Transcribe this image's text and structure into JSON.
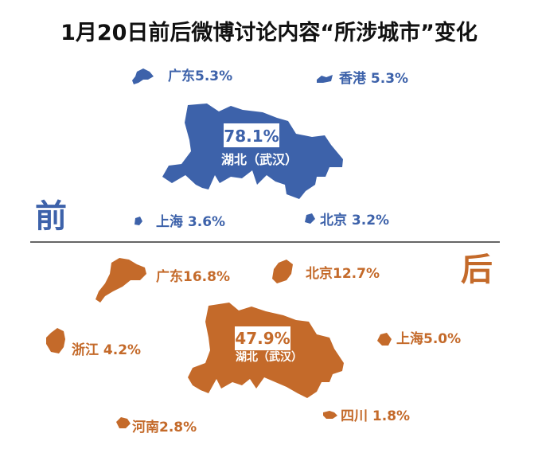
{
  "title": "1月20日前后微博讨论内容“所涉城市”变化",
  "colors": {
    "before": "#3D62AA",
    "after": "#C46A2A",
    "text_before": "#3D62AA",
    "text_after": "#C46A2A"
  },
  "chart_data": {
    "type": "table",
    "title": "1月20日前后微博讨论内容“所涉城市”变化",
    "series": [
      {
        "name": "前",
        "items": [
          {
            "city": "湖北（武汉）",
            "value": 78.1,
            "text": "78.1%"
          },
          {
            "city": "广东",
            "value": 5.3,
            "text": "广东5.3%"
          },
          {
            "city": "香港",
            "value": 5.3,
            "text": "香港 5.3%"
          },
          {
            "city": "上海",
            "value": 3.6,
            "text": "上海 3.6%"
          },
          {
            "city": "北京",
            "value": 3.2,
            "text": "北京 3.2%"
          }
        ]
      },
      {
        "name": "后",
        "items": [
          {
            "city": "湖北（武汉）",
            "value": 47.9,
            "text": "47.9%"
          },
          {
            "city": "广东",
            "value": 16.8,
            "text": "广东16.8%"
          },
          {
            "city": "北京",
            "value": 12.7,
            "text": "北京12.7%"
          },
          {
            "city": "浙江",
            "value": 4.2,
            "text": "浙江 4.2%"
          },
          {
            "city": "上海",
            "value": 5.0,
            "text": "上海5.0%"
          },
          {
            "city": "河南",
            "value": 2.8,
            "text": "河南2.8%"
          },
          {
            "city": "四川",
            "value": 1.8,
            "text": "四川 1.8%"
          }
        ]
      }
    ]
  },
  "labels": {
    "before_section": "前",
    "after_section": "后",
    "hubei_name": "湖北（武汉）"
  }
}
